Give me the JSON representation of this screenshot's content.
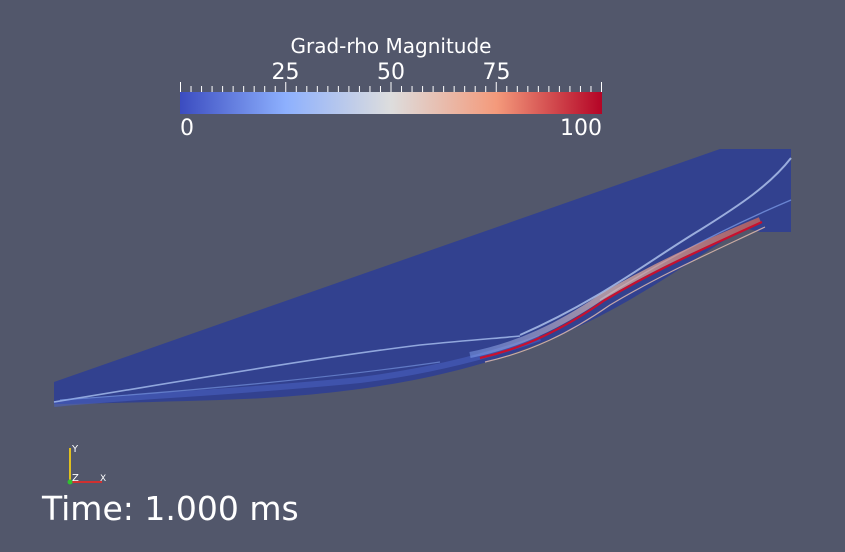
{
  "legend": {
    "title": "Grad-rho Magnitude",
    "range": [
      0,
      100
    ],
    "major_ticks": [
      {
        "value": 25,
        "label": "25"
      },
      {
        "value": 50,
        "label": "50"
      },
      {
        "value": 75,
        "label": "75"
      }
    ],
    "min_label": "0",
    "max_label": "100",
    "colormap": [
      "#3b4cc0",
      "#8db0fe",
      "#dddddd",
      "#f49a7b",
      "#b40426"
    ]
  },
  "time_annotation": "Time: 1.000 ms",
  "axes": {
    "y_label": "Y",
    "z_label": "Z",
    "x_label": "X"
  },
  "colors": {
    "background": "#52576b",
    "field_base": "#32418f",
    "shock_light": "#b4c8f0",
    "shock_hot": "#c8102e"
  }
}
